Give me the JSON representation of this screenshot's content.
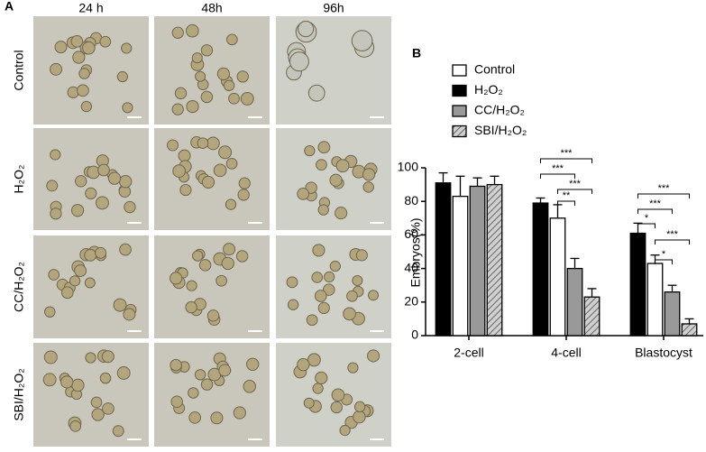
{
  "panel_a": {
    "label": "A",
    "columns": [
      "24 h",
      "48h",
      "96h"
    ],
    "rows": [
      "Control",
      "H₂O₂",
      "CC/H₂O₂",
      "SBI/H₂O₂"
    ]
  },
  "chart_data": {
    "type": "bar",
    "panel_label": "B",
    "y_label": "Embryos(%)",
    "categories": [
      "2-cell",
      "4-cell",
      "Blastocyst"
    ],
    "series": [
      {
        "name": "H₂O₂",
        "color": "#000000",
        "values": [
          91,
          79,
          61
        ],
        "errors": [
          6,
          3,
          6
        ]
      },
      {
        "name": "Control",
        "color": "#ffffff",
        "values": [
          83,
          70,
          43
        ],
        "errors": [
          12,
          8,
          5
        ]
      },
      {
        "name": "CC/H₂O₂",
        "color": "#999999",
        "values": [
          89,
          40,
          26
        ],
        "errors": [
          5,
          6,
          4
        ]
      },
      {
        "name": "SBI/H₂O₂",
        "color": "hatch",
        "values": [
          90,
          23,
          7
        ],
        "errors": [
          5,
          5,
          3
        ]
      }
    ],
    "ylim": [
      0,
      100
    ],
    "yticks": [
      0,
      20,
      40,
      60,
      80,
      100
    ],
    "annotations": [
      "***",
      "***",
      "***",
      "**",
      "***",
      "***",
      "*",
      "***",
      "*"
    ]
  }
}
